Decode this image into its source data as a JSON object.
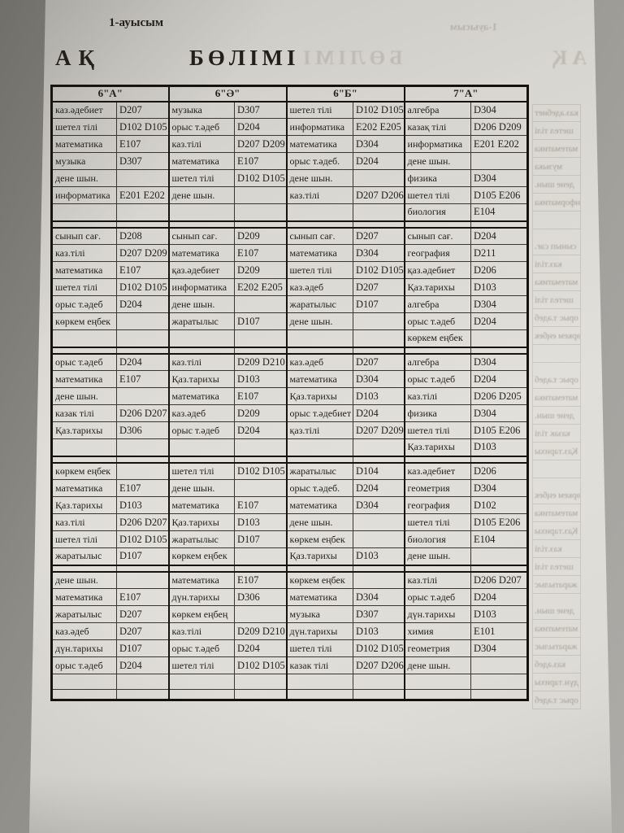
{
  "page": {
    "shift_label": "1-ауысым",
    "title_left": "АҚ",
    "title_right": "БӨЛІМІ",
    "ghost_shift_label": "1-ауысым",
    "ghost_title_right": "БӨЛІМІ",
    "ghost_title_left": "АҚ"
  },
  "colors": {
    "paper": "#dedcd6",
    "ink": "#221f1a",
    "border_thin": "#3a372f",
    "border_thick": "#16130e",
    "backdrop": "#94928d",
    "ghost": "#6b675e"
  },
  "table": {
    "class_headers": [
      "6\"А\"",
      "6\"Ә\"",
      "6\"Б\"",
      "7\"А\""
    ],
    "blocks": [
      {
        "rows": [
          [
            [
              "каз.әдебиет",
              "D207"
            ],
            [
              "музыка",
              "D307"
            ],
            [
              "шетел тілі",
              "D102 D105"
            ],
            [
              "алгебра",
              "D304"
            ]
          ],
          [
            [
              "шетел тілі",
              "D102 D105"
            ],
            [
              "орыс т.әдеб",
              "D204"
            ],
            [
              "информатика",
              "E202 E205"
            ],
            [
              "казақ тілі",
              "D206 D209"
            ]
          ],
          [
            [
              "математика",
              "E107"
            ],
            [
              "каз.тілі",
              "D207 D209"
            ],
            [
              "математика",
              "D304"
            ],
            [
              "информатика",
              "E201 E202"
            ]
          ],
          [
            [
              "музыка",
              "D307"
            ],
            [
              "математика",
              "E107"
            ],
            [
              "орыс т.әдеб.",
              "D204"
            ],
            [
              "дене шын.",
              ""
            ]
          ],
          [
            [
              "дене шын.",
              ""
            ],
            [
              "шетел тілі",
              "D102 D105"
            ],
            [
              "дене шын.",
              ""
            ],
            [
              "физика",
              "D304"
            ]
          ],
          [
            [
              "информатика",
              "E201 E202"
            ],
            [
              "дене шын.",
              ""
            ],
            [
              "каз.тілі",
              "D207 D206"
            ],
            [
              "шетел тілі",
              "D105 E206"
            ]
          ],
          [
            [
              "",
              ""
            ],
            [
              "",
              ""
            ],
            [
              "",
              ""
            ],
            [
              "биология",
              "E104"
            ]
          ]
        ]
      },
      {
        "rows": [
          [
            [
              "сынып сағ.",
              "D208"
            ],
            [
              "сынып сағ.",
              "D209"
            ],
            [
              "сынып сағ.",
              "D207"
            ],
            [
              "сынып сағ.",
              "D204"
            ]
          ],
          [
            [
              "каз.тілі",
              "D207 D209"
            ],
            [
              "математика",
              "E107"
            ],
            [
              "математика",
              "D304"
            ],
            [
              "география",
              "D211"
            ]
          ],
          [
            [
              "математика",
              "E107"
            ],
            [
              "қаз.әдебиет",
              "D209"
            ],
            [
              "шетел тілі",
              "D102 D105"
            ],
            [
              "қаз.әдебиет",
              "D206"
            ]
          ],
          [
            [
              "шетел тілі",
              "D102 D105"
            ],
            [
              "информатика",
              "E202 E205"
            ],
            [
              "каз.әдеб",
              "D207"
            ],
            [
              "Қаз.тарихы",
              "D103"
            ]
          ],
          [
            [
              "орыс т.әдеб",
              "D204"
            ],
            [
              "дене шын.",
              ""
            ],
            [
              "жаратылыс",
              "D107"
            ],
            [
              "алгебра",
              "D304"
            ]
          ],
          [
            [
              "көркем еңбек",
              ""
            ],
            [
              "жаратылыс",
              "D107"
            ],
            [
              "дене шын.",
              ""
            ],
            [
              "орыс т.әдеб",
              "D204"
            ]
          ],
          [
            [
              "",
              ""
            ],
            [
              "",
              ""
            ],
            [
              "",
              ""
            ],
            [
              "көркем еңбек",
              ""
            ]
          ]
        ]
      },
      {
        "rows": [
          [
            [
              "орыс т.әдеб",
              "D204"
            ],
            [
              "каз.тілі",
              "D209 D210"
            ],
            [
              "каз.әдеб",
              "D207"
            ],
            [
              "алгебра",
              "D304"
            ]
          ],
          [
            [
              "математика",
              "E107"
            ],
            [
              "Қаз.тарихы",
              "D103"
            ],
            [
              "математика",
              "D304"
            ],
            [
              "орыс т.әдеб",
              "D204"
            ]
          ],
          [
            [
              "дене шын.",
              ""
            ],
            [
              "математика",
              "E107"
            ],
            [
              "Қаз.тарихы",
              "D103"
            ],
            [
              "каз.тілі",
              "D206 D205"
            ]
          ],
          [
            [
              "казак тілі",
              "D206 D207"
            ],
            [
              "каз.әдеб",
              "D209"
            ],
            [
              "орыс т.әдебиет",
              "D204"
            ],
            [
              "физика",
              "D304"
            ]
          ],
          [
            [
              "Қаз.тарихы",
              "D306"
            ],
            [
              "орыс т.әдеб",
              "D204"
            ],
            [
              "қаз.тілі",
              "D207 D209"
            ],
            [
              "шетел тілі",
              "D105 E206"
            ]
          ],
          [
            [
              "",
              ""
            ],
            [
              "",
              ""
            ],
            [
              "",
              ""
            ],
            [
              "Қаз.тарихы",
              "D103"
            ]
          ]
        ]
      },
      {
        "rows": [
          [
            [
              "көркем еңбек",
              ""
            ],
            [
              "шетел тілі",
              "D102 D105"
            ],
            [
              "жаратылыс",
              "D104"
            ],
            [
              "каз.әдебиет",
              "D206"
            ]
          ],
          [
            [
              "математика",
              "E107"
            ],
            [
              "дене шын.",
              ""
            ],
            [
              "орыс т.әдеб.",
              "D204"
            ],
            [
              "геометрия",
              "D304"
            ]
          ],
          [
            [
              "Қаз.тарихы",
              "D103"
            ],
            [
              "математика",
              "E107"
            ],
            [
              "математика",
              "D304"
            ],
            [
              "география",
              "D102"
            ]
          ],
          [
            [
              "каз.тілі",
              "D206 D207"
            ],
            [
              "Қаз.тарихы",
              "D103"
            ],
            [
              "дене шын.",
              ""
            ],
            [
              "шетел тілі",
              "D105 E206"
            ]
          ],
          [
            [
              "шетел тілі",
              "D102 D105"
            ],
            [
              "жаратылыс",
              "D107"
            ],
            [
              "көркем еңбек",
              ""
            ],
            [
              "биология",
              "E104"
            ]
          ],
          [
            [
              "жаратылыс",
              "D107"
            ],
            [
              "көркем еңбек",
              ""
            ],
            [
              "Қаз.тарихы",
              "D103"
            ],
            [
              "дене шын.",
              ""
            ]
          ]
        ]
      },
      {
        "rows": [
          [
            [
              "дене шын.",
              ""
            ],
            [
              "математика",
              "E107"
            ],
            [
              "көркем еңбек",
              ""
            ],
            [
              "каз.тілі",
              "D206 D207"
            ]
          ],
          [
            [
              "математика",
              "E107"
            ],
            [
              "дүн.тарихы",
              "D306"
            ],
            [
              "математика",
              "D304"
            ],
            [
              "орыс т.әдеб",
              "D204"
            ]
          ],
          [
            [
              "жаратылыс",
              "D207"
            ],
            [
              "көркем еңбең",
              ""
            ],
            [
              "музыка",
              "D307"
            ],
            [
              "дүн.тарихы",
              "D103"
            ]
          ],
          [
            [
              "каз.әдеб",
              "D207"
            ],
            [
              "каз.тілі",
              "D209 D210"
            ],
            [
              "дүн.тарихы",
              "D103"
            ],
            [
              "химия",
              "E101"
            ]
          ],
          [
            [
              "дүн.тарихы",
              "D107"
            ],
            [
              "орыс т.әдеб",
              "D204"
            ],
            [
              "шетел тілі",
              "D102 D105"
            ],
            [
              "геометрия",
              "D304"
            ]
          ],
          [
            [
              "орыс т.әдеб",
              "D204"
            ],
            [
              "шетел тілі",
              "D102 D105"
            ],
            [
              "казак тілі",
              "D207 D206"
            ],
            [
              "дене шын.",
              ""
            ]
          ]
        ]
      }
    ],
    "trailing_empty_rows": 2
  }
}
